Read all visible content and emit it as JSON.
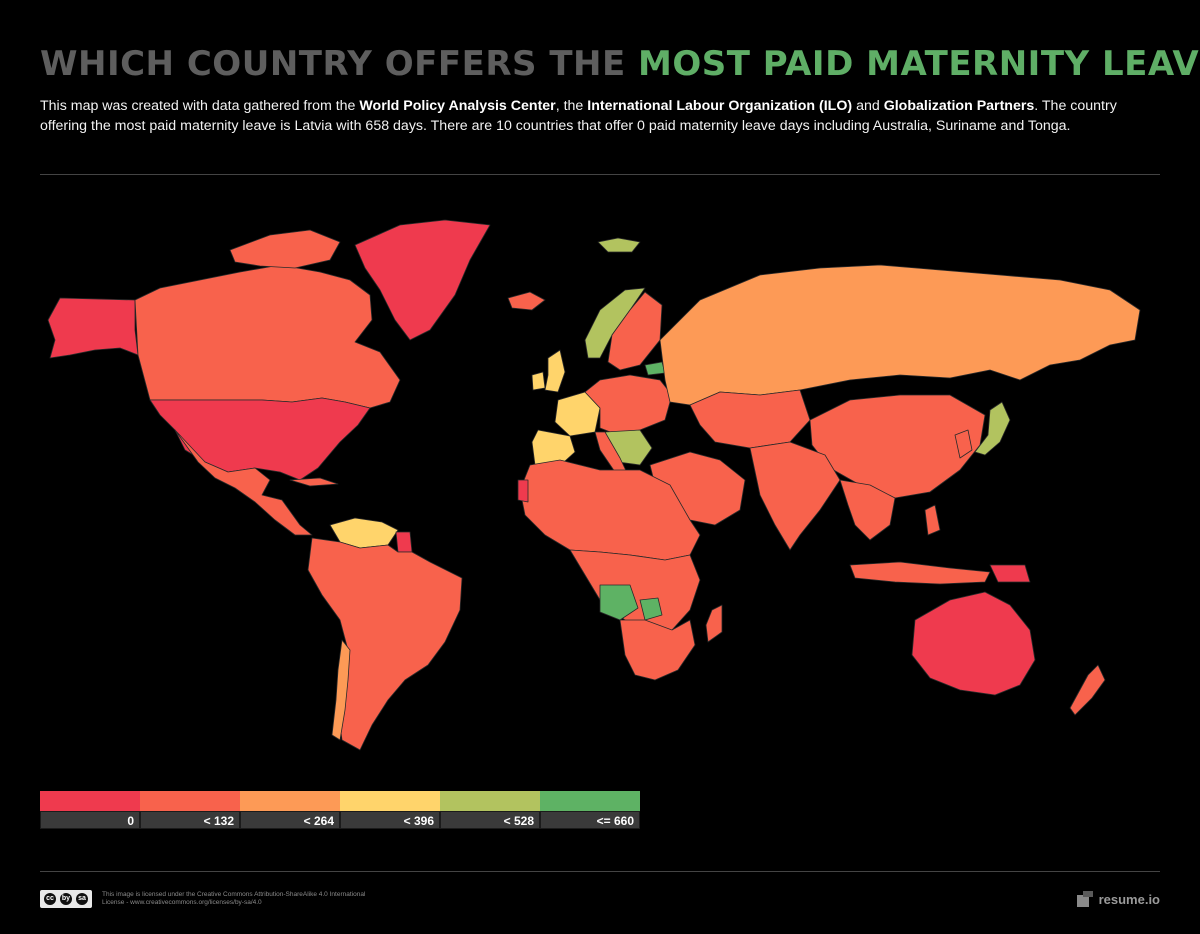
{
  "title": {
    "part1": "WHICH COUNTRY OFFERS THE ",
    "part2": "MOST PAID MATERNITY LEAVE",
    "part3": "?"
  },
  "description": {
    "t1": "This map was created with data gathered from the ",
    "b1": "World Policy Analysis Center",
    "t2": ", the ",
    "b2": "International Labour Organization (ILO)",
    "t3": " and ",
    "b3": "Globalization Partners",
    "t4": ". The country offering the most paid maternity leave is Latvia with 658 days. There are 10 countries that offer 0 paid maternity leave days including Australia, Suriname and Tonga."
  },
  "legend": [
    {
      "label": "0",
      "color": "#ef3a4e"
    },
    {
      "label": "< 132",
      "color": "#f8624c"
    },
    {
      "label": "< 264",
      "color": "#fd9a56"
    },
    {
      "label": "< 396",
      "color": "#ffd46b"
    },
    {
      "label": "< 528",
      "color": "#b2c35f"
    },
    {
      "label": "<= 660",
      "color": "#5eb264"
    }
  ],
  "map_colors": {
    "ocean": "#000000",
    "border": "#2a2a2a"
  },
  "footer": {
    "cc_icons": [
      "cc",
      "by",
      "sa"
    ],
    "license": "This image is licensed under the Creative Commons Attribution-ShareAlike 4.0 International License - www.creativecommons.org/licenses/by-sa/4.0",
    "brand": "resume.io"
  }
}
